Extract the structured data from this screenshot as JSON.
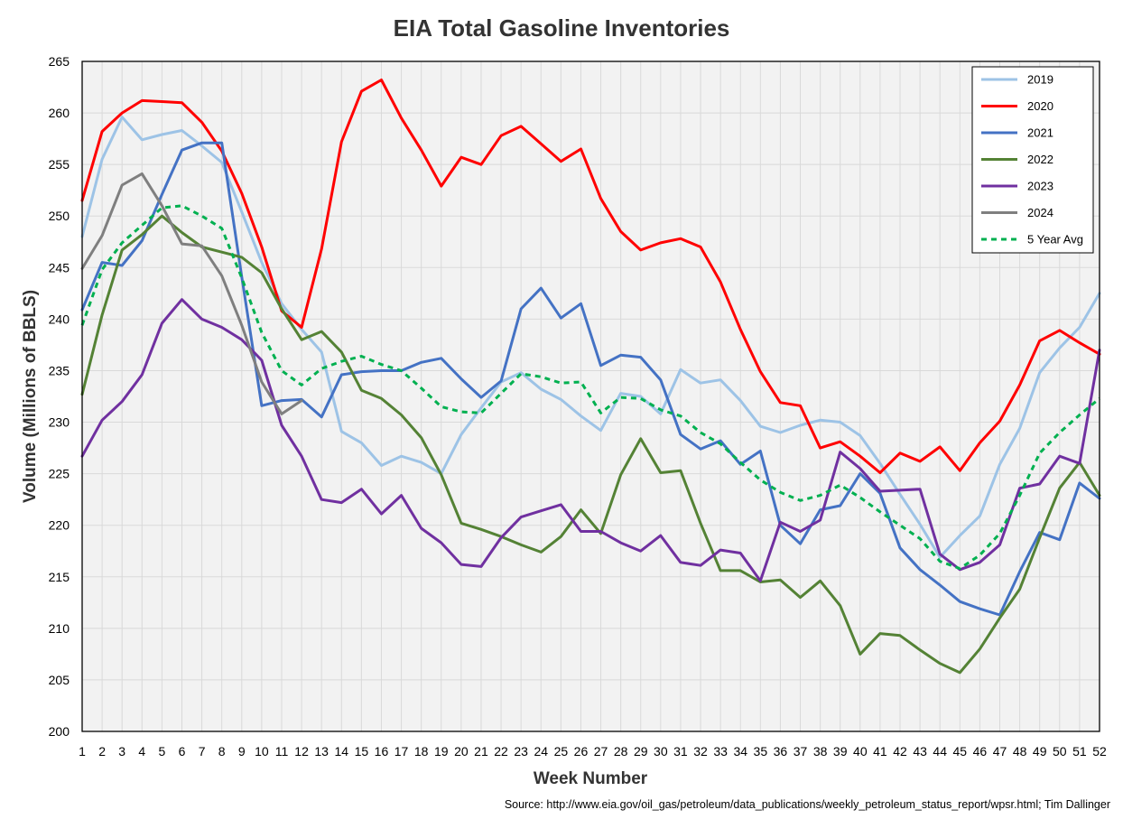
{
  "chart_data": {
    "type": "line",
    "title": "EIA Total Gasoline Inventories",
    "xlabel": "Week Number",
    "ylabel": "Volume (Millions of BBLS)",
    "source": "Source: http://www.eia.gov/oil_gas/petroleum/data_publications/weekly_petroleum_status_report/wpsr.html; Tim Dallinger",
    "ylim": [
      200,
      265
    ],
    "xlim": [
      1,
      52
    ],
    "yticks": [
      200,
      205,
      210,
      215,
      220,
      225,
      230,
      235,
      240,
      245,
      250,
      255,
      260,
      265
    ],
    "xticks": [
      1,
      2,
      3,
      4,
      5,
      6,
      7,
      8,
      9,
      10,
      11,
      12,
      13,
      14,
      15,
      16,
      17,
      18,
      19,
      20,
      21,
      22,
      23,
      24,
      25,
      26,
      27,
      28,
      29,
      30,
      31,
      32,
      33,
      34,
      35,
      36,
      37,
      38,
      39,
      40,
      41,
      42,
      43,
      44,
      45,
      46,
      47,
      48,
      49,
      50,
      51,
      52
    ],
    "grid": true,
    "legend_position": "top-right",
    "series": [
      {
        "name": "2019",
        "color": "#9dc3e6",
        "dash": false,
        "values": [
          248.0,
          255.5,
          259.6,
          257.4,
          257.9,
          258.3,
          256.8,
          255.2,
          250.4,
          245.5,
          241.5,
          239.0,
          236.8,
          229.1,
          228.0,
          225.8,
          226.7,
          226.1,
          225.0,
          228.8,
          231.4,
          233.9,
          234.8,
          233.2,
          232.2,
          230.6,
          229.2,
          232.8,
          232.5,
          230.8,
          235.1,
          233.8,
          234.1,
          232.1,
          229.6,
          229.0,
          229.7,
          230.2,
          230.0,
          228.7,
          226.0,
          223.0,
          220.1,
          216.9,
          219.0,
          220.9,
          225.9,
          229.4,
          234.8,
          237.2,
          239.2,
          242.5
        ]
      },
      {
        "name": "2020",
        "color": "#ff0000",
        "dash": false,
        "values": [
          251.5,
          258.2,
          260.0,
          261.2,
          261.1,
          261.0,
          259.1,
          256.3,
          252.2,
          247.0,
          240.8,
          239.2,
          246.8,
          257.2,
          262.1,
          263.2,
          259.5,
          256.4,
          252.9,
          255.7,
          255.0,
          257.8,
          258.7,
          257.0,
          255.3,
          256.5,
          251.7,
          248.5,
          246.7,
          247.4,
          247.8,
          247.0,
          243.6,
          239.0,
          234.9,
          231.9,
          231.6,
          227.5,
          228.1,
          226.7,
          225.1,
          227.0,
          226.2,
          227.6,
          225.3,
          228.0,
          230.1,
          233.6,
          237.9,
          238.9,
          237.7,
          236.6
        ]
      },
      {
        "name": "2021",
        "color": "#4472c4",
        "dash": false,
        "values": [
          240.9,
          245.5,
          245.2,
          247.6,
          252.1,
          256.4,
          257.1,
          257.1,
          244.1,
          231.6,
          232.1,
          232.2,
          230.5,
          234.6,
          234.9,
          235.0,
          235.0,
          235.8,
          236.2,
          234.2,
          232.4,
          234.0,
          241.0,
          243.0,
          240.1,
          241.5,
          235.5,
          236.5,
          236.3,
          234.1,
          228.8,
          227.4,
          228.2,
          225.9,
          227.2,
          220.0,
          218.2,
          221.5,
          221.9,
          225.0,
          223.1,
          217.8,
          215.7,
          214.2,
          212.6,
          211.9,
          211.3,
          215.5,
          219.3,
          218.6,
          224.1,
          222.6
        ]
      },
      {
        "name": "2022",
        "color": "#548235",
        "dash": false,
        "values": [
          232.7,
          240.4,
          246.7,
          248.2,
          250.0,
          248.4,
          247.0,
          246.5,
          246.0,
          244.5,
          241.0,
          238.0,
          238.8,
          236.8,
          233.1,
          232.3,
          230.7,
          228.5,
          224.9,
          220.2,
          219.6,
          218.9,
          218.1,
          217.4,
          218.9,
          221.5,
          219.2,
          224.9,
          228.4,
          225.1,
          225.3,
          220.2,
          215.6,
          215.6,
          214.5,
          214.7,
          213.0,
          214.6,
          212.2,
          207.5,
          209.5,
          209.3,
          207.9,
          206.6,
          205.7,
          208.0,
          211.0,
          213.8,
          218.8,
          223.6,
          226.1,
          222.9
        ]
      },
      {
        "name": "2023",
        "color": "#7030a0",
        "dash": false,
        "values": [
          226.7,
          230.2,
          232.0,
          234.6,
          239.6,
          241.9,
          240.0,
          239.2,
          238.0,
          236.0,
          229.7,
          226.7,
          222.5,
          222.2,
          223.5,
          221.1,
          222.9,
          219.7,
          218.3,
          216.2,
          216.0,
          218.8,
          220.8,
          221.4,
          222.0,
          219.4,
          219.4,
          218.3,
          217.5,
          219.0,
          216.4,
          216.1,
          217.6,
          217.3,
          214.6,
          220.3,
          219.4,
          220.5,
          227.1,
          225.5,
          223.3,
          223.4,
          223.5,
          217.2,
          215.7,
          216.4,
          218.1,
          223.6,
          224.0,
          226.7,
          226.0,
          237.0
        ]
      },
      {
        "name": "2024",
        "color": "#7f7f7f",
        "dash": false,
        "values": [
          244.9,
          248.1,
          253.0,
          254.1,
          251.0,
          247.3,
          247.1,
          244.2,
          239.4,
          233.9,
          230.8,
          232.1
        ]
      },
      {
        "name": "5 Year Avg",
        "color": "#00b050",
        "dash": true,
        "values": [
          239.4,
          244.8,
          247.4,
          249.1,
          250.8,
          251.0,
          250.0,
          248.8,
          244.0,
          238.7,
          235.0,
          233.6,
          235.2,
          235.9,
          236.4,
          235.6,
          235.0,
          233.3,
          231.5,
          231.0,
          230.9,
          232.8,
          234.7,
          234.4,
          233.8,
          233.9,
          230.9,
          232.4,
          232.3,
          231.2,
          230.6,
          229.0,
          227.9,
          226.1,
          224.4,
          223.2,
          222.4,
          222.9,
          223.9,
          222.7,
          221.3,
          220.0,
          218.7,
          216.5,
          215.8,
          217.1,
          219.2,
          222.9,
          227.0,
          229.0,
          230.7,
          232.3
        ]
      }
    ]
  }
}
